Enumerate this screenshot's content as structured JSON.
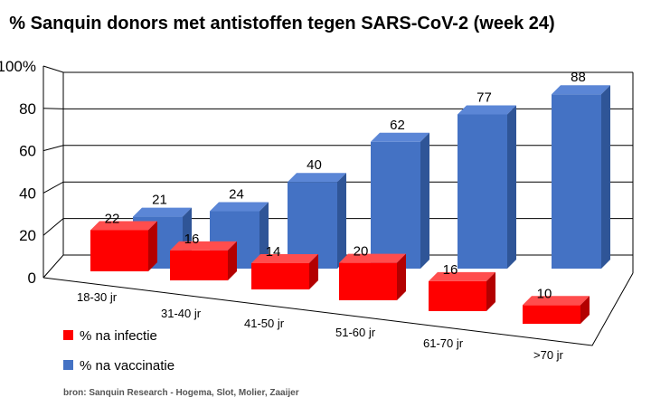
{
  "chart_data": {
    "type": "bar",
    "title": "% Sanquin donors met antistoffen tegen SARS-CoV-2 (week 24)",
    "categories": [
      "18-30 jr",
      "31-40 jr",
      "41-50 jr",
      "51-60 jr",
      "61-70 jr",
      ">70 jr"
    ],
    "series": [
      {
        "name": "% na vaccinatie",
        "values": [
          21,
          24,
          40,
          62,
          77,
          88
        ],
        "color": "#4472C4"
      },
      {
        "name": "% na infectie",
        "values": [
          22,
          16,
          14,
          20,
          16,
          10
        ],
        "color": "#FF0000"
      }
    ],
    "yticks": [
      "0",
      "20",
      "40",
      "60",
      "80",
      "100%"
    ],
    "ylim": [
      0,
      100
    ],
    "grid": true,
    "legend": "bottom-left",
    "style": "3d-clustered-bar"
  },
  "legend": {
    "infectie": "% na infectie",
    "vaccinatie": "% na vaccinatie"
  },
  "source": "bron: Sanquin Research - Hogema, Slot, Molier, Zaaijer"
}
